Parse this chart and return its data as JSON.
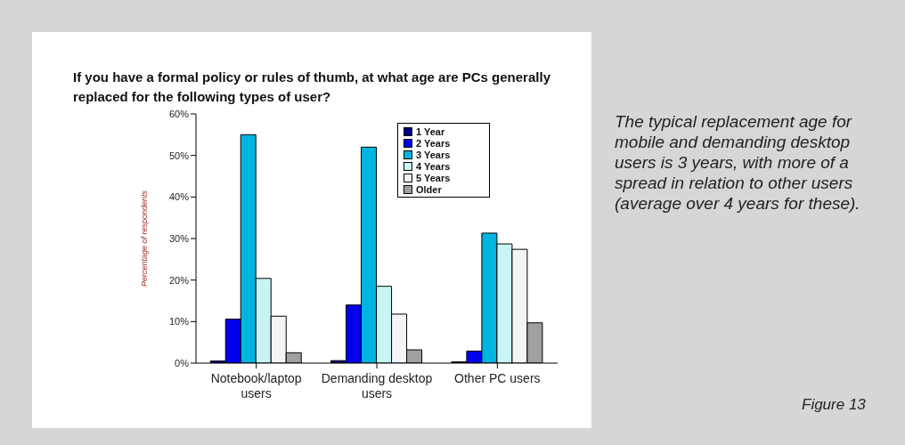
{
  "chart_data": {
    "type": "bar",
    "title": "If you have a formal policy or rules of thumb, at what age are PCs generally replaced for the following types of user?",
    "ylabel": "Percentage of respondents",
    "categories": [
      "Notebook/laptop users",
      "Demanding desktop users",
      "Other PC users"
    ],
    "series": [
      {
        "name": "1 Year",
        "color": "#000080",
        "values": [
          0.5,
          0.6,
          0.3
        ]
      },
      {
        "name": "2 Years",
        "color": "#0000ee",
        "values": [
          10.6,
          14,
          2.9
        ]
      },
      {
        "name": "3 Years",
        "color": "#00b4e0",
        "values": [
          55,
          52,
          31.3
        ]
      },
      {
        "name": "4 Years",
        "color": "#c8f4f4",
        "values": [
          20.4,
          18.5,
          28.7
        ]
      },
      {
        "name": "5 Years",
        "color": "#f4f4f4",
        "values": [
          11.3,
          11.8,
          27.4
        ]
      },
      {
        "name": "Older",
        "color": "#a0a0a0",
        "values": [
          2.5,
          3.2,
          9.7
        ]
      }
    ],
    "ylim": [
      0,
      60
    ],
    "yticks": [
      {
        "value": 0,
        "label": "0%"
      },
      {
        "value": 10,
        "label": "10%"
      },
      {
        "value": 20,
        "label": "20%"
      },
      {
        "value": 30,
        "label": "30%"
      },
      {
        "value": 40,
        "label": "40%"
      },
      {
        "value": 50,
        "label": "50%"
      },
      {
        "value": 60,
        "label": "60%"
      }
    ],
    "grid": false,
    "legend": "top",
    "annotations": [
      "The typical replacement age for mobile and demanding desktop users is 3 years, with more of a spread in relation to other users (average over 4 years for these).",
      "Figure 13"
    ]
  }
}
